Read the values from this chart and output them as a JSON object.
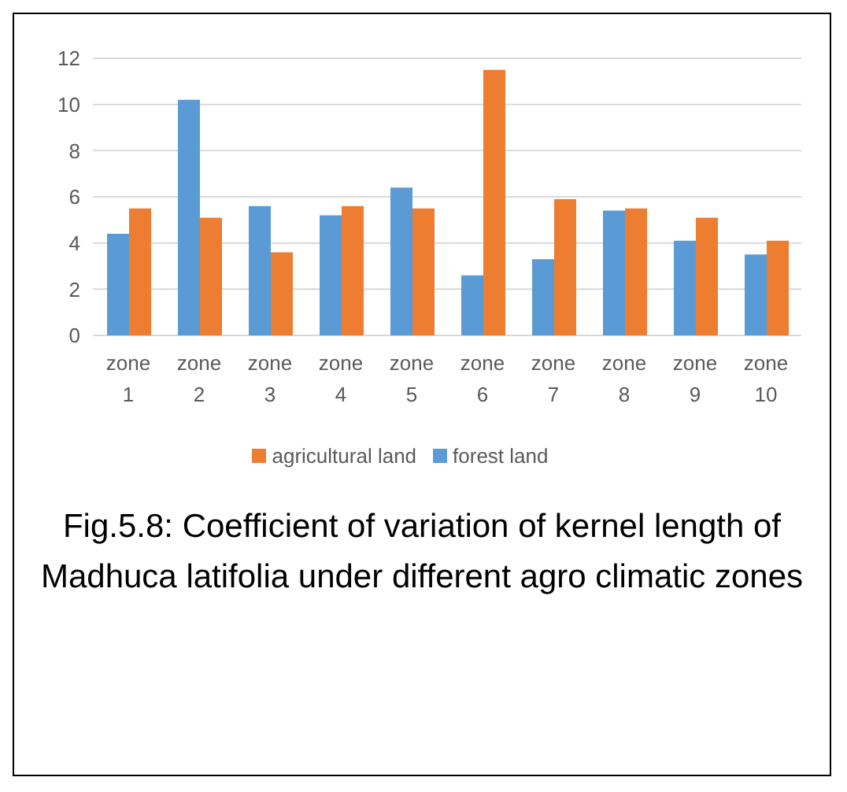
{
  "chart_data": {
    "type": "bar",
    "title": "Fig.5.8: Coefficient of variation of kernel length of Madhuca latifolia under different agro climatic zones",
    "categories": [
      "zone 1",
      "zone 2",
      "zone 3",
      "zone 4",
      "zone 5",
      "zone 6",
      "zone 7",
      "zone 8",
      "zone 9",
      "zone 10"
    ],
    "series": [
      {
        "name": "forest land",
        "color": "#5b9bd5",
        "values": [
          4.4,
          10.2,
          5.6,
          5.2,
          6.4,
          2.6,
          3.3,
          5.4,
          4.1,
          3.5
        ]
      },
      {
        "name": "agricultural land",
        "color": "#ed7d31",
        "values": [
          5.5,
          5.1,
          3.6,
          5.6,
          5.5,
          11.5,
          5.9,
          5.5,
          5.1,
          4.1
        ]
      }
    ],
    "ylim": [
      0,
      12
    ],
    "yticks": [
      0,
      2,
      4,
      6,
      8,
      10,
      12
    ],
    "grid": "y",
    "legend": "bottom"
  }
}
